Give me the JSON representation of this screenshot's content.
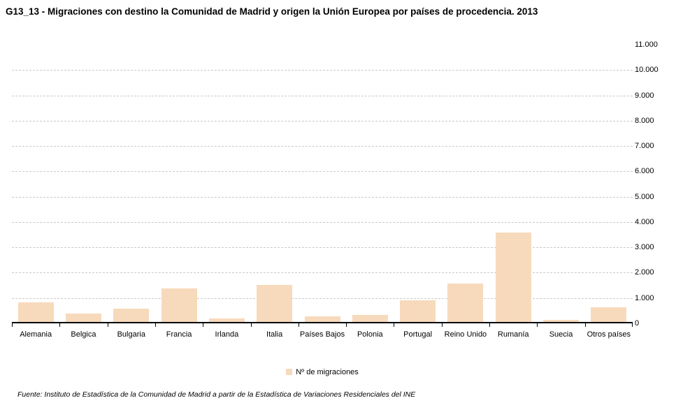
{
  "page": {
    "title": "G13_13 - Migraciones con destino la Comunidad de Madrid y origen la Unión Europea por países de procedencia. 2013",
    "source": "Fuente: Instituto de Estadística de la Comunidad de Madrid a partir de la Estadística de Variaciones Residenciales del INE"
  },
  "legend": {
    "label": "Nº de migraciones"
  },
  "colors": {
    "bar_fill": "#f7dabb",
    "gridline": "#c9c9c9",
    "axis": "#000000",
    "text": "#000000",
    "background": "#ffffff"
  },
  "chart_data": {
    "type": "bar",
    "title": "G13_13 - Migraciones con destino la Comunidad de Madrid y origen la Unión Europea por países de procedencia. 2013",
    "categories": [
      "Alemania",
      "Belgica",
      "Bulgaria",
      "Francia",
      "Irlanda",
      "Italia",
      "Países Bajos",
      "Polonia",
      "Portugal",
      "Reino Unido",
      "Rumanía",
      "Suecia",
      "Otros países"
    ],
    "values": [
      840,
      390,
      580,
      1380,
      200,
      1520,
      280,
      330,
      910,
      1570,
      3580,
      140,
      640
    ],
    "series_name": "Nº de migraciones",
    "xlabel": "",
    "ylabel": "",
    "ylim": [
      0,
      11000
    ],
    "ytick_interval": 1000,
    "ytick_labels": [
      "0",
      "1.000",
      "2.000",
      "3.000",
      "4.000",
      "5.000",
      "6.000",
      "7.000",
      "8.000",
      "9.000",
      "10.000",
      "11.000"
    ],
    "legend_entries": [
      "Nº de migraciones"
    ],
    "legend_position": "bottom-center",
    "grid": "horizontal-dashed",
    "y_axis_side": "right",
    "bar_color": "#f7dabb"
  }
}
